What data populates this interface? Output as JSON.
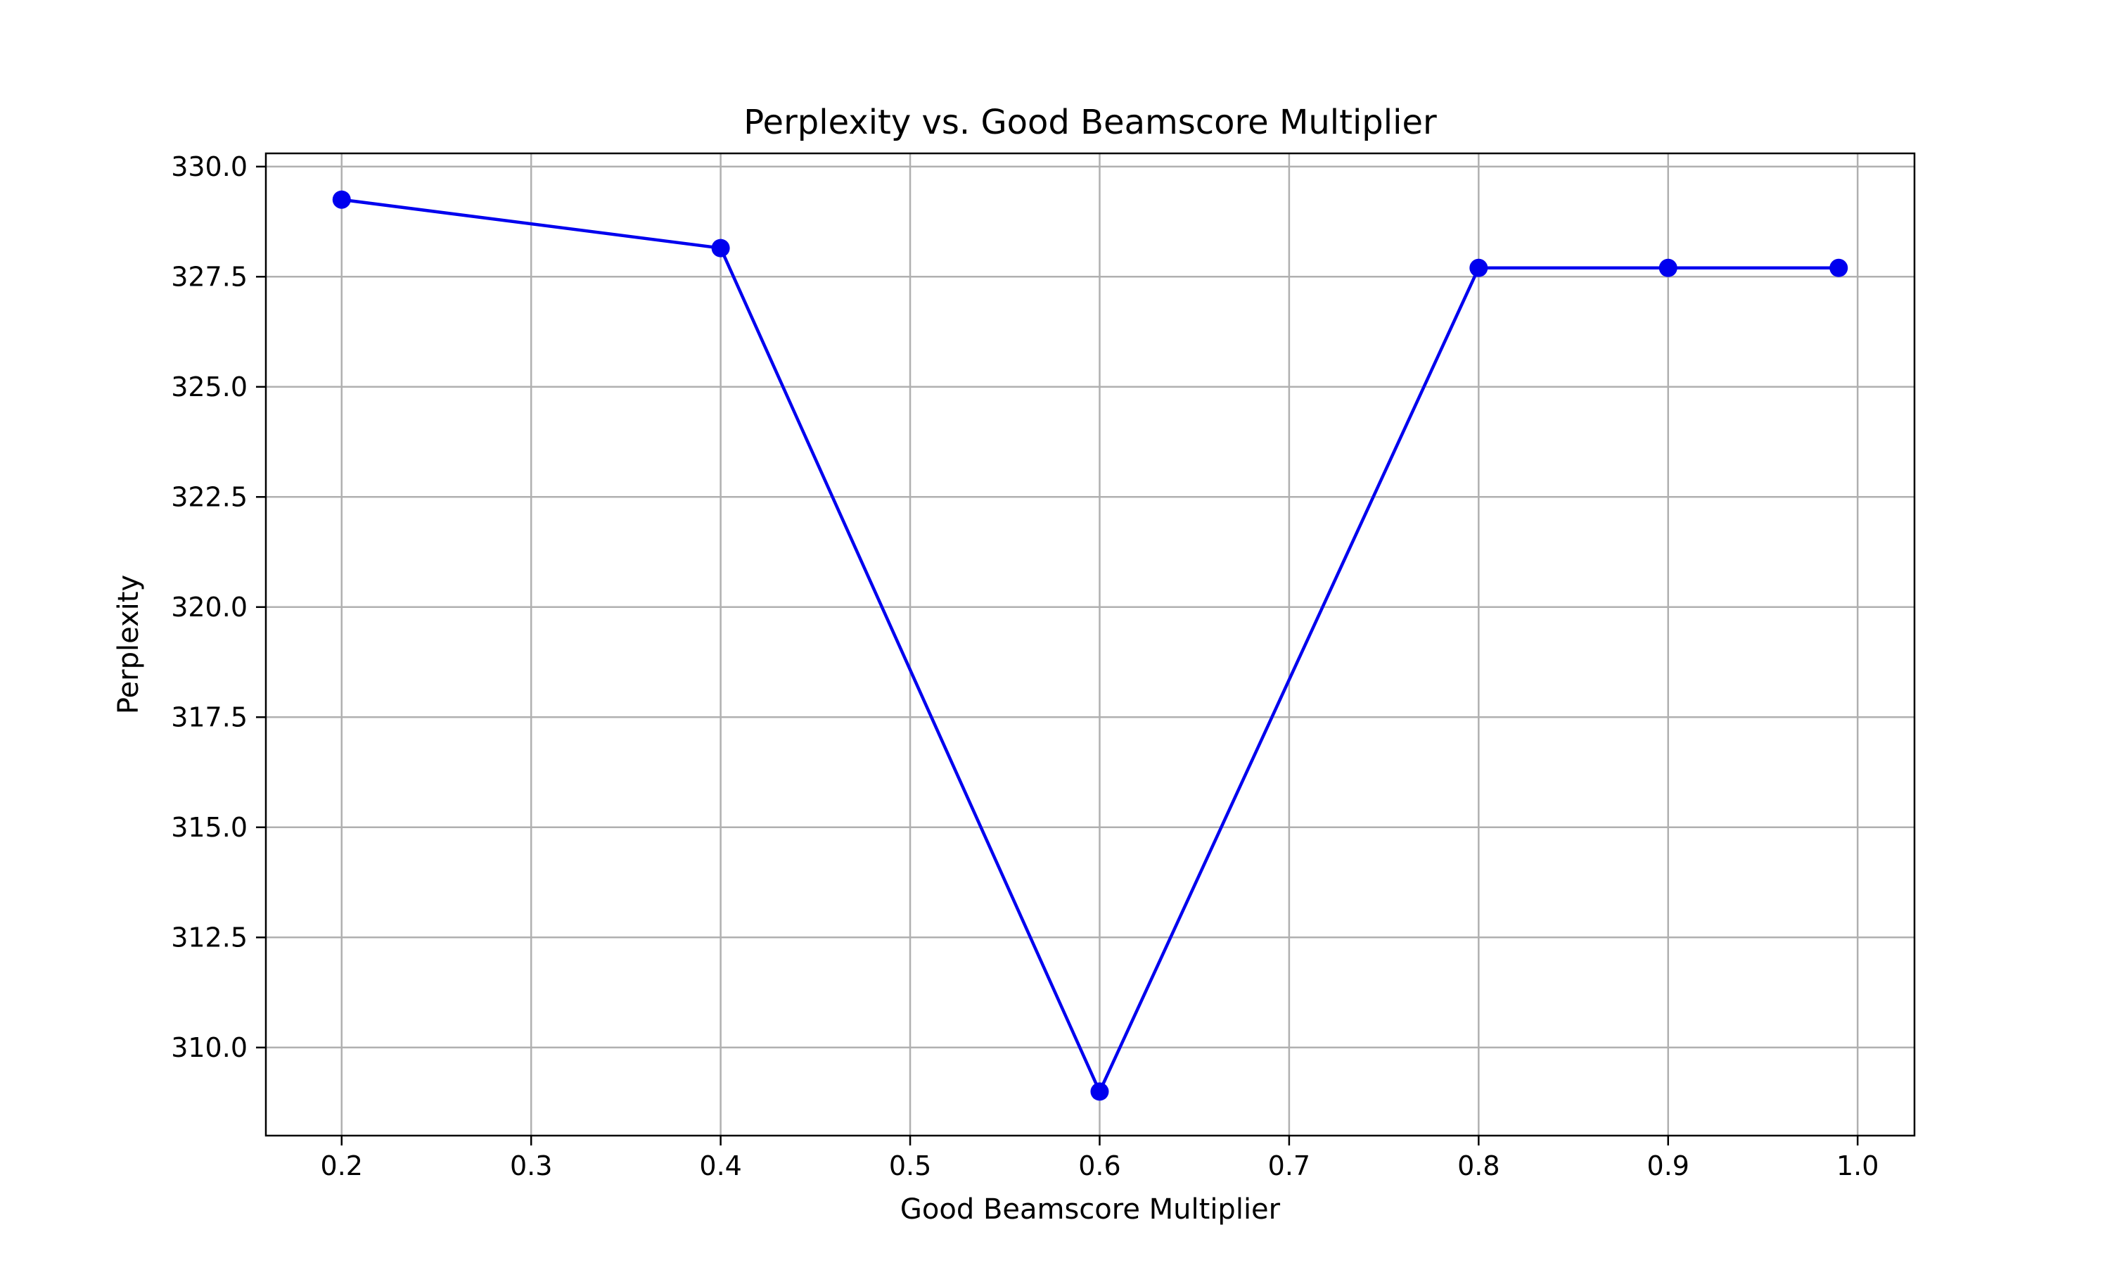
{
  "chart_data": {
    "type": "line",
    "title": "Perplexity vs. Good Beamscore Multiplier",
    "xlabel": "Good Beamscore Multiplier",
    "ylabel": "Perplexity",
    "xlim": [
      0.16,
      1.03
    ],
    "ylim": [
      308.0,
      330.3
    ],
    "xticks": [
      0.2,
      0.3,
      0.4,
      0.5,
      0.6,
      0.7,
      0.8,
      0.9,
      1.0
    ],
    "xtick_labels": [
      "0.2",
      "0.3",
      "0.4",
      "0.5",
      "0.6",
      "0.7",
      "0.8",
      "0.9",
      "1.0"
    ],
    "yticks": [
      310.0,
      312.5,
      315.0,
      317.5,
      320.0,
      322.5,
      325.0,
      327.5,
      330.0
    ],
    "ytick_labels": [
      "310.0",
      "312.5",
      "315.0",
      "317.5",
      "320.0",
      "322.5",
      "325.0",
      "327.5",
      "330.0"
    ],
    "grid": true,
    "series": [
      {
        "color": "#0000ee",
        "marker": "circle",
        "x": [
          0.2,
          0.4,
          0.6,
          0.8,
          0.9,
          0.99
        ],
        "y": [
          329.25,
          328.15,
          309.0,
          327.7,
          327.7,
          327.7
        ]
      }
    ]
  }
}
